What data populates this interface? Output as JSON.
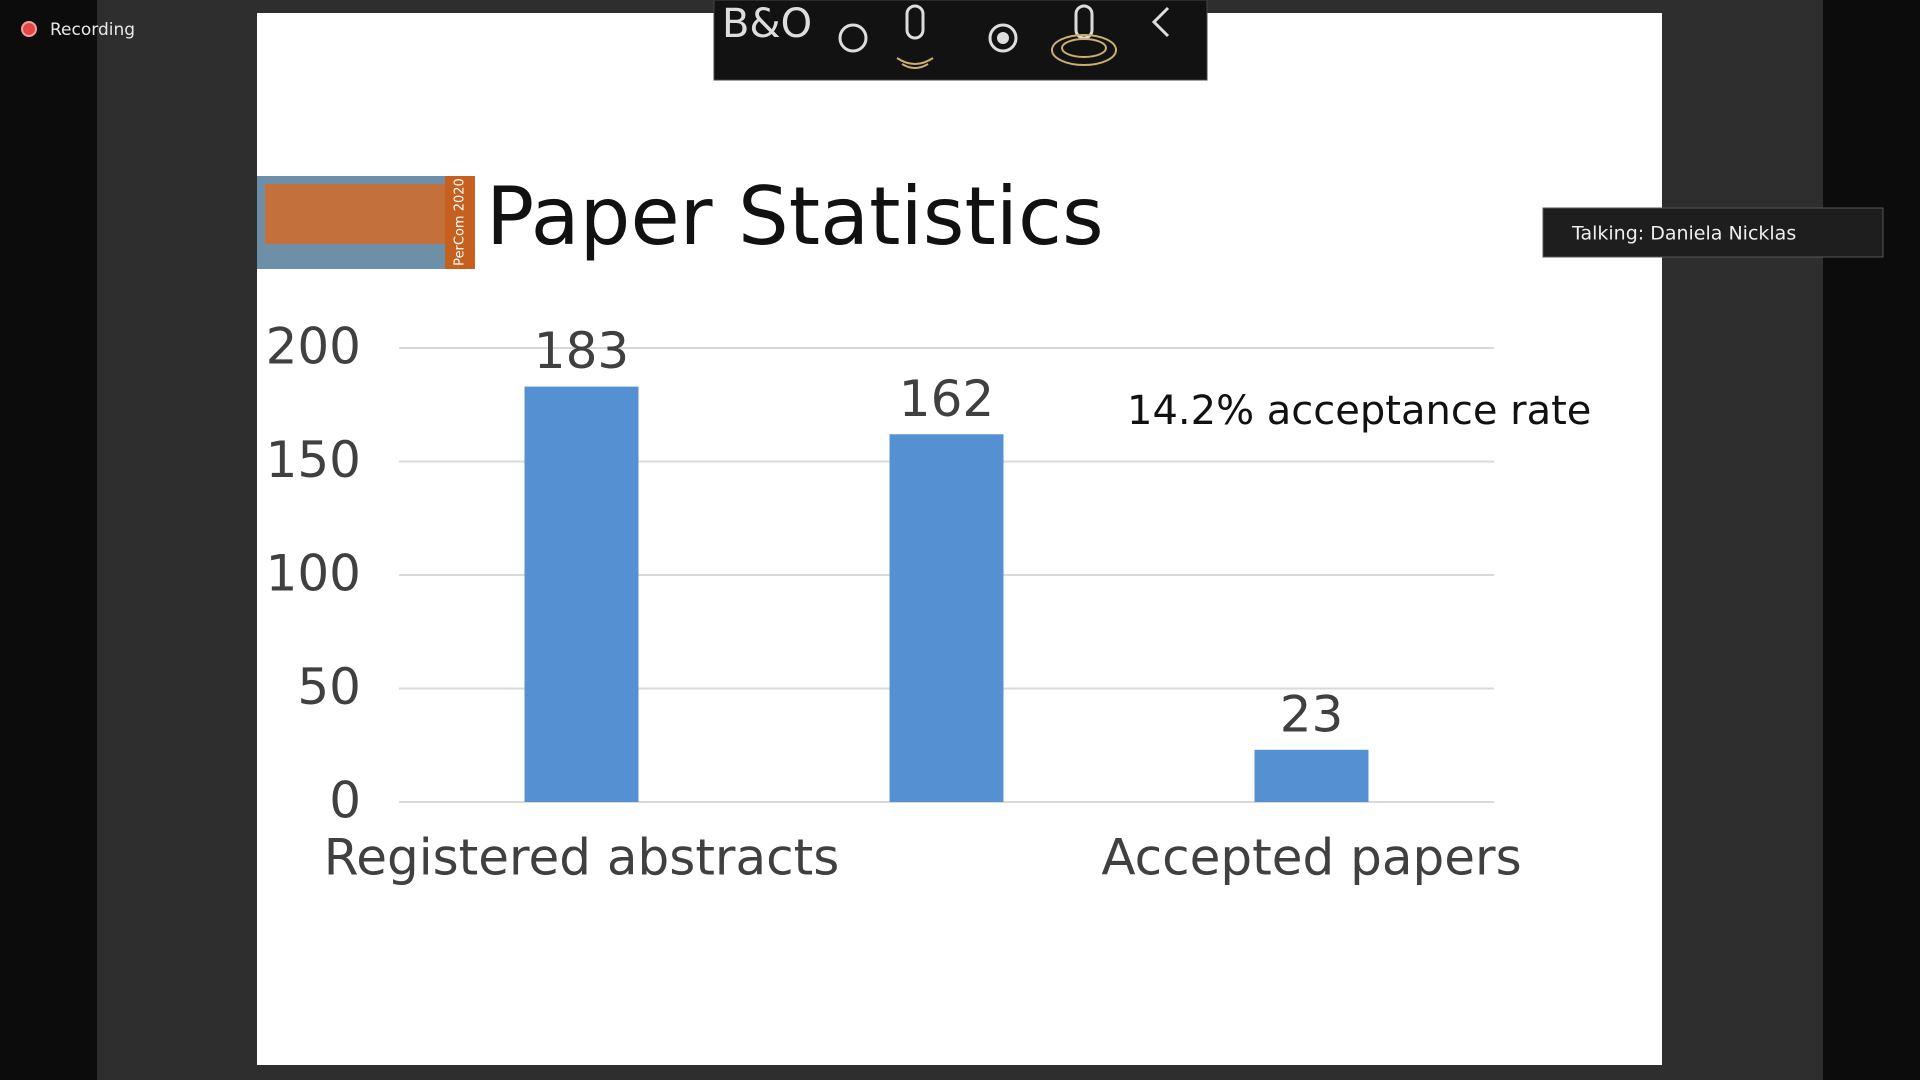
{
  "recording": "Recording",
  "toolbar": {
    "logo": "B&O"
  },
  "talking": "Talking: Daniela Nicklas",
  "slide": {
    "title": "Paper Statistics",
    "logo_text": "PerCom 2020"
  },
  "chart_data": {
    "type": "bar",
    "categories": [
      "Registered abstracts",
      null,
      "Accepted papers"
    ],
    "values": [
      183,
      162,
      23
    ],
    "color": "#5591d2",
    "ylim": [
      0,
      200
    ],
    "yticks": [
      0,
      50,
      100,
      150,
      200
    ],
    "grid": true,
    "annotation": "14.2% acceptance rate"
  }
}
